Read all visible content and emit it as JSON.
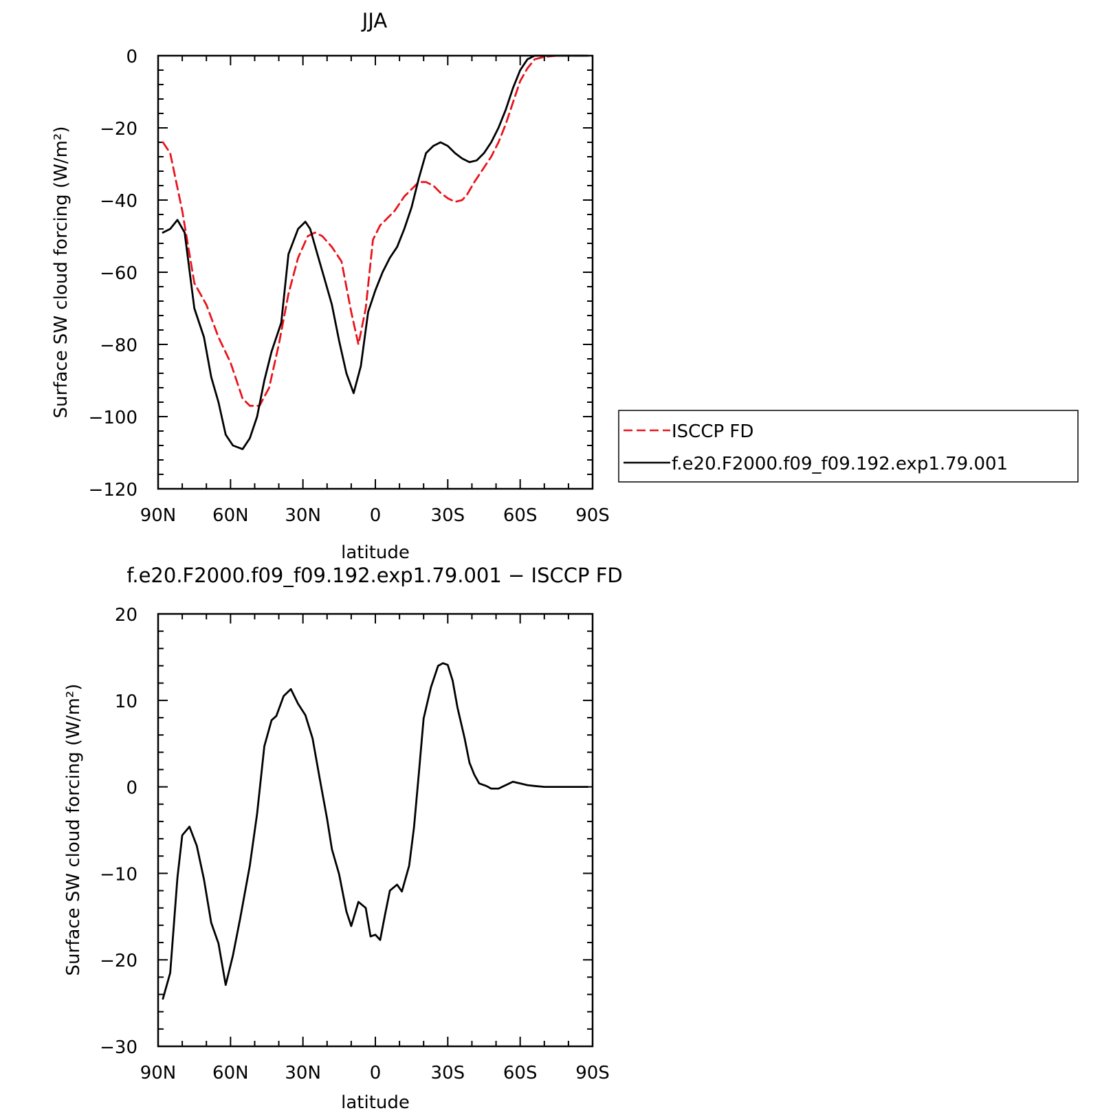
{
  "chart_data": [
    {
      "type": "line",
      "title": "JJA",
      "xlabel": "latitude",
      "ylabel": "Surface SW cloud forcing (W/m²)",
      "xlim": [
        90,
        -90
      ],
      "ylim": [
        -120,
        0
      ],
      "xticks": [
        90,
        60,
        30,
        0,
        -30,
        -60,
        -90
      ],
      "xtick_labels": [
        "90N",
        "60N",
        "30N",
        "0",
        "30S",
        "60S",
        "90S"
      ],
      "yticks": [
        0,
        -20,
        -40,
        -60,
        -80,
        -100,
        -120
      ],
      "ytick_labels": [
        "0",
        "−20",
        "−40",
        "−60",
        "−80",
        "−100",
        "−120"
      ],
      "legend": "right",
      "series": [
        {
          "name": "ISCCP FD",
          "color": "#e8141c",
          "style": "dashed",
          "x": [
            88,
            85,
            80,
            75,
            70,
            65,
            60,
            55,
            52,
            48,
            44,
            40,
            36,
            32,
            28,
            25,
            22,
            18,
            14,
            10,
            7,
            4,
            1,
            -2,
            -5,
            -8,
            -12,
            -15,
            -18,
            -21,
            -24,
            -27,
            -30,
            -33,
            -36,
            -38,
            -41,
            -44,
            -48,
            -51,
            -54,
            -57,
            -60,
            -63,
            -66,
            -70,
            -75,
            -80,
            -85,
            -88
          ],
          "y": [
            -24,
            -27,
            -43,
            -63,
            -69,
            -78,
            -85,
            -95,
            -97,
            -97,
            -92,
            -80,
            -66,
            -56,
            -50,
            -49,
            -50,
            -53,
            -57,
            -71,
            -80,
            -70,
            -51,
            -47,
            -45,
            -43,
            -39,
            -37,
            -35,
            -35,
            -36,
            -38,
            -39.5,
            -40.5,
            -40,
            -38.5,
            -35,
            -32,
            -28,
            -24,
            -19,
            -13,
            -7,
            -3.5,
            -1,
            -0.3,
            0,
            0,
            0,
            0
          ]
        },
        {
          "name": "f.e20.F2000.f09_f09.192.exp1.79.001",
          "color": "#000000",
          "style": "solid",
          "x": [
            88,
            85,
            82,
            79,
            75,
            71,
            68,
            65,
            62,
            59,
            55,
            52,
            49,
            46,
            43,
            39,
            36,
            32,
            29,
            27,
            24,
            21,
            18,
            15,
            12,
            9,
            6,
            3,
            0,
            -3,
            -6,
            -9,
            -12,
            -15,
            -18,
            -21,
            -24,
            -27,
            -30,
            -33,
            -36,
            -39,
            -42,
            -45,
            -48,
            -51,
            -54,
            -57,
            -60,
            -63,
            -66,
            -69,
            -72,
            -76,
            -80,
            -85,
            -88
          ],
          "y": [
            -49,
            -48,
            -45.5,
            -49,
            -70,
            -78,
            -89,
            -96,
            -105,
            -108,
            -109,
            -106,
            -100,
            -90,
            -82,
            -74,
            -55,
            -48,
            -46,
            -48,
            -55,
            -62,
            -69,
            -79,
            -88,
            -93.5,
            -86,
            -71,
            -65,
            -60,
            -56,
            -53,
            -48,
            -42,
            -34,
            -27,
            -25,
            -24,
            -25,
            -27,
            -28.5,
            -29.5,
            -29,
            -27,
            -24,
            -20,
            -15,
            -9,
            -4,
            -1,
            0,
            0,
            0,
            0,
            0,
            0,
            0
          ]
        }
      ]
    },
    {
      "type": "line",
      "title": "f.e20.F2000.f09_f09.192.exp1.79.001 − ISCCP FD",
      "xlabel": "latitude",
      "ylabel": "Surface SW cloud forcing (W/m²)",
      "xlim": [
        90,
        -90
      ],
      "ylim": [
        -30,
        20
      ],
      "xticks": [
        90,
        60,
        30,
        0,
        -30,
        -60,
        -90
      ],
      "xtick_labels": [
        "90N",
        "60N",
        "30N",
        "0",
        "30S",
        "60S",
        "90S"
      ],
      "yticks": [
        20,
        10,
        0,
        -10,
        -20,
        -30
      ],
      "ytick_labels": [
        "20",
        "10",
        "0",
        "−10",
        "−20",
        "−30"
      ],
      "series": [
        {
          "color": "#000000",
          "style": "solid",
          "x": [
            88,
            85,
            82,
            80,
            77,
            74,
            71,
            68,
            65,
            62,
            59,
            56,
            52,
            49,
            46,
            43,
            41,
            38,
            35,
            32,
            29,
            26,
            23,
            20,
            18,
            15,
            12,
            10,
            7,
            4,
            2,
            0,
            -2,
            -4,
            -6,
            -9,
            -11,
            -14,
            -16,
            -18,
            -20,
            -23,
            -26,
            -28,
            -30,
            -32,
            -34,
            -37,
            -39,
            -41,
            -43,
            -46,
            -48,
            -51,
            -54,
            -57,
            -60,
            -63,
            -66,
            -70,
            -75,
            -80,
            -86,
            -88
          ],
          "y": [
            -24.5,
            -21.5,
            -10.5,
            -5.6,
            -4.6,
            -6.8,
            -10.7,
            -15.7,
            -18.1,
            -22.9,
            -19.5,
            -15.2,
            -9.1,
            -3.1,
            4.7,
            7.7,
            8.2,
            10.5,
            11.3,
            9.6,
            8.3,
            5.6,
            0.9,
            -3.7,
            -7.2,
            -10.1,
            -14.4,
            -16.1,
            -13.3,
            -14,
            -17.3,
            -17.1,
            -17.7,
            -14.8,
            -12,
            -11.3,
            -12.1,
            -9.1,
            -4.7,
            1.5,
            7.9,
            11.5,
            14,
            14.3,
            14.1,
            12.3,
            9.2,
            5.6,
            2.8,
            1.4,
            0.4,
            0.1,
            -0.2,
            -0.2,
            0.2,
            0.6,
            0.4,
            0.2,
            0.1,
            0,
            0,
            0,
            0,
            0
          ]
        }
      ]
    }
  ]
}
